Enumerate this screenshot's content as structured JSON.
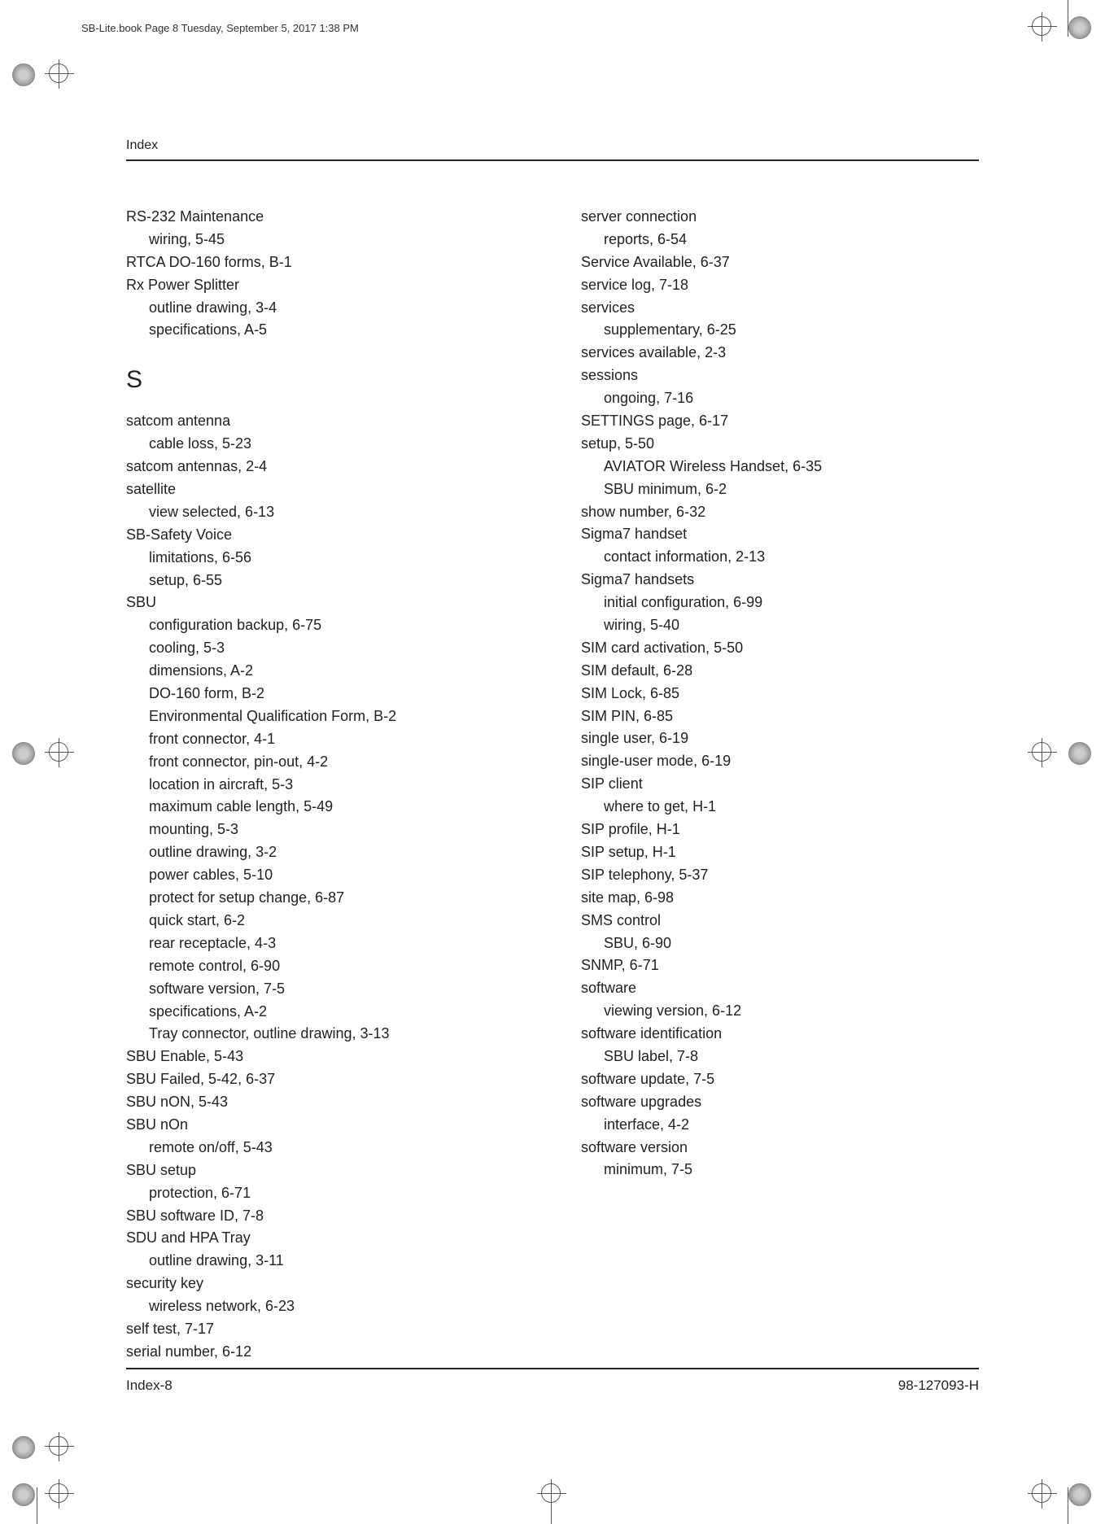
{
  "pageHeader": "SB-Lite.book  Page 8  Tuesday, September 5, 2017  1:38 PM",
  "runningHead": "Index",
  "footerLeft": "Index-8",
  "footerRight": "98-127093-H",
  "sectionLetter": "S",
  "col1": {
    "top": [
      {
        "t": "RS-232 Maintenance",
        "s": 0
      },
      {
        "t": "wiring,  5-45",
        "s": 1
      },
      {
        "t": "RTCA DO-160 forms,  B-1",
        "s": 0
      },
      {
        "t": "Rx Power Splitter",
        "s": 0
      },
      {
        "t": "outline drawing,  3-4",
        "s": 1
      },
      {
        "t": "specifications,  A-5",
        "s": 1
      }
    ],
    "bottom": [
      {
        "t": "satcom antenna",
        "s": 0
      },
      {
        "t": "cable loss,  5-23",
        "s": 1
      },
      {
        "t": "satcom antennas,  2-4",
        "s": 0
      },
      {
        "t": "satellite",
        "s": 0
      },
      {
        "t": "view selected,  6-13",
        "s": 1
      },
      {
        "t": "SB-Safety Voice",
        "s": 0
      },
      {
        "t": "limitations,  6-56",
        "s": 1
      },
      {
        "t": "setup,  6-55",
        "s": 1
      },
      {
        "t": "SBU",
        "s": 0
      },
      {
        "t": "configuration backup,  6-75",
        "s": 1
      },
      {
        "t": "cooling,  5-3",
        "s": 1
      },
      {
        "t": "dimensions,  A-2",
        "s": 1
      },
      {
        "t": "DO-160 form,  B-2",
        "s": 1
      },
      {
        "t": "Environmental Qualification Form,  B-2",
        "s": 1
      },
      {
        "t": "front connector,  4-1",
        "s": 1
      },
      {
        "t": "front connector, pin-out,  4-2",
        "s": 1
      },
      {
        "t": "location in aircraft,  5-3",
        "s": 1
      },
      {
        "t": "maximum cable length,  5-49",
        "s": 1
      },
      {
        "t": "mounting,  5-3",
        "s": 1
      },
      {
        "t": "outline drawing,  3-2",
        "s": 1
      },
      {
        "t": "power cables,  5-10",
        "s": 1
      },
      {
        "t": "protect for setup change,  6-87",
        "s": 1
      },
      {
        "t": "quick start,  6-2",
        "s": 1
      },
      {
        "t": "rear receptacle,  4-3",
        "s": 1
      },
      {
        "t": "remote control,  6-90",
        "s": 1
      },
      {
        "t": "software version,  7-5",
        "s": 1
      },
      {
        "t": "specifications,  A-2",
        "s": 1
      },
      {
        "t": "Tray connector, outline drawing,  3-13",
        "s": 1
      },
      {
        "t": "SBU Enable,  5-43",
        "s": 0
      },
      {
        "t": "SBU Failed,  5-42,  6-37",
        "s": 0
      },
      {
        "t": "SBU nON,  5-43",
        "s": 0
      },
      {
        "t": "SBU nOn",
        "s": 0
      },
      {
        "t": "remote on/off,  5-43",
        "s": 1
      },
      {
        "t": "SBU setup",
        "s": 0
      },
      {
        "t": "protection,  6-71",
        "s": 1
      },
      {
        "t": "SBU software ID,  7-8",
        "s": 0
      },
      {
        "t": "SDU and HPA Tray",
        "s": 0
      },
      {
        "t": "outline drawing,  3-11",
        "s": 1
      },
      {
        "t": "security key",
        "s": 0
      },
      {
        "t": "wireless network,  6-23",
        "s": 1
      },
      {
        "t": "self test,  7-17",
        "s": 0
      },
      {
        "t": "serial number,  6-12",
        "s": 0
      }
    ]
  },
  "col2": [
    {
      "t": "server connection",
      "s": 0
    },
    {
      "t": "reports,  6-54",
      "s": 1
    },
    {
      "t": "Service Available,  6-37",
      "s": 0
    },
    {
      "t": "service log,  7-18",
      "s": 0
    },
    {
      "t": "services",
      "s": 0
    },
    {
      "t": "supplementary,  6-25",
      "s": 1
    },
    {
      "t": "services available,  2-3",
      "s": 0
    },
    {
      "t": "sessions",
      "s": 0
    },
    {
      "t": "ongoing,  7-16",
      "s": 1
    },
    {
      "t": "SETTINGS page,  6-17",
      "s": 0
    },
    {
      "t": "setup,  5-50",
      "s": 0
    },
    {
      "t": "AVIATOR Wireless Handset,  6-35",
      "s": 1
    },
    {
      "t": "SBU minimum,  6-2",
      "s": 1
    },
    {
      "t": "show number,  6-32",
      "s": 0
    },
    {
      "t": "Sigma7 handset",
      "s": 0
    },
    {
      "t": "contact information,  2-13",
      "s": 1
    },
    {
      "t": "Sigma7 handsets",
      "s": 0
    },
    {
      "t": "initial configuration,  6-99",
      "s": 1
    },
    {
      "t": "wiring,  5-40",
      "s": 1
    },
    {
      "t": "SIM card activation,  5-50",
      "s": 0
    },
    {
      "t": "SIM default,  6-28",
      "s": 0
    },
    {
      "t": "SIM Lock,  6-85",
      "s": 0
    },
    {
      "t": "SIM PIN,  6-85",
      "s": 0
    },
    {
      "t": "single user,  6-19",
      "s": 0
    },
    {
      "t": "single-user mode,  6-19",
      "s": 0
    },
    {
      "t": "SIP client",
      "s": 0
    },
    {
      "t": "where to get,  H-1",
      "s": 1
    },
    {
      "t": "SIP profile,  H-1",
      "s": 0
    },
    {
      "t": "SIP setup,  H-1",
      "s": 0
    },
    {
      "t": "SIP telephony,  5-37",
      "s": 0
    },
    {
      "t": "site map,  6-98",
      "s": 0
    },
    {
      "t": "SMS control",
      "s": 0
    },
    {
      "t": "SBU,  6-90",
      "s": 1
    },
    {
      "t": "SNMP,  6-71",
      "s": 0
    },
    {
      "t": "software",
      "s": 0
    },
    {
      "t": "viewing version,  6-12",
      "s": 1
    },
    {
      "t": "software identification",
      "s": 0
    },
    {
      "t": "SBU label,  7-8",
      "s": 1
    },
    {
      "t": "software update,  7-5",
      "s": 0
    },
    {
      "t": "software upgrades",
      "s": 0
    },
    {
      "t": "interface,  4-2",
      "s": 1
    },
    {
      "t": "software version",
      "s": 0
    },
    {
      "t": "minimum,  7-5",
      "s": 1
    }
  ]
}
